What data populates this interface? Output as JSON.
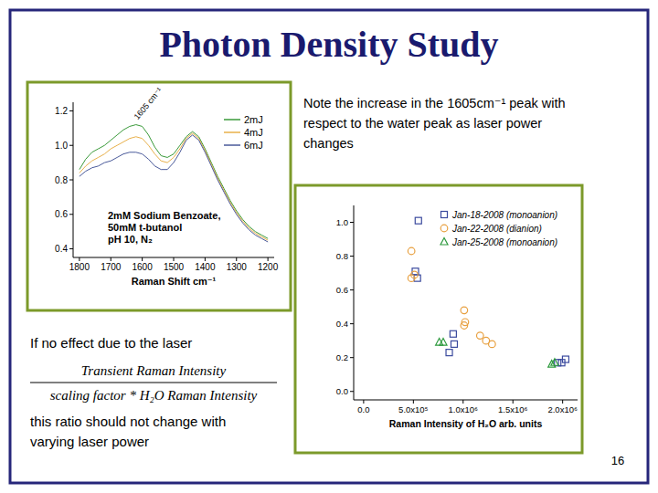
{
  "slide": {
    "title": "Photon Density Study",
    "note": [
      "Note the increase in the 1605cm⁻¹ peak with",
      "respect to the water peak  as laser power",
      "changes"
    ],
    "caption_top": "If no effect due to the laser",
    "formula_numerator": "Transient  Raman  Intensity",
    "formula_denominator": "scaling  factor * H₂O  Raman  Intensity",
    "caption_bottom": [
      "this ratio should not change with",
      "varying laser power"
    ],
    "page_number": "16"
  },
  "chart_data": [
    {
      "type": "line",
      "xlabel": "Raman Shift cm⁻¹",
      "annotations": [
        "1605 cm⁻¹",
        "2mM Sodium Benzoate,",
        "50mM t-butanol",
        "pH 10, N₂"
      ],
      "x": [
        1800,
        1780,
        1760,
        1740,
        1720,
        1700,
        1680,
        1660,
        1640,
        1620,
        1600,
        1580,
        1560,
        1540,
        1520,
        1500,
        1480,
        1460,
        1440,
        1420,
        1400,
        1380,
        1360,
        1340,
        1320,
        1300,
        1280,
        1260,
        1240,
        1220,
        1200
      ],
      "series": [
        {
          "name": "2mJ",
          "color": "#3a9a3a",
          "values": [
            0.86,
            0.92,
            0.96,
            0.98,
            1.0,
            1.03,
            1.06,
            1.09,
            1.11,
            1.12,
            1.11,
            1.06,
            0.99,
            0.94,
            0.93,
            0.95,
            1.0,
            1.05,
            1.08,
            1.05,
            0.98,
            0.9,
            0.82,
            0.75,
            0.68,
            0.62,
            0.57,
            0.53,
            0.5,
            0.48,
            0.46
          ]
        },
        {
          "name": "4mJ",
          "color": "#e8b04a",
          "values": [
            0.84,
            0.88,
            0.91,
            0.93,
            0.95,
            0.98,
            1.0,
            1.02,
            1.04,
            1.05,
            1.04,
            1.0,
            0.95,
            0.91,
            0.9,
            0.93,
            0.98,
            1.04,
            1.07,
            1.04,
            0.97,
            0.89,
            0.81,
            0.74,
            0.67,
            0.61,
            0.56,
            0.52,
            0.49,
            0.47,
            0.45
          ]
        },
        {
          "name": "6mJ",
          "color": "#4a5a9a",
          "values": [
            0.82,
            0.85,
            0.87,
            0.88,
            0.9,
            0.91,
            0.93,
            0.95,
            0.96,
            0.96,
            0.95,
            0.92,
            0.88,
            0.86,
            0.86,
            0.9,
            0.96,
            1.03,
            1.06,
            1.03,
            0.96,
            0.88,
            0.8,
            0.73,
            0.66,
            0.6,
            0.55,
            0.51,
            0.48,
            0.46,
            0.44
          ]
        }
      ],
      "xlim": [
        1820,
        1180
      ],
      "xticks": [
        1800,
        1700,
        1600,
        1500,
        1400,
        1300,
        1200
      ],
      "ylim": [
        0.35,
        1.25
      ],
      "yticks": [
        0.4,
        0.6,
        0.8,
        {
          "value": 1,
          "label": "1.0"
        },
        1.2
      ],
      "legend": "upper right",
      "grid": false
    },
    {
      "type": "scatter",
      "xlabel": "Raman Intensity of H₂O arb. units",
      "series": [
        {
          "name": "Jan-18-2008 (monoanion)",
          "color": "#3b4a9e",
          "marker": "square",
          "x": [
            550000,
            520000,
            540000,
            900000,
            910000,
            860000,
            2030000,
            1990000,
            1950000
          ],
          "values": [
            1.01,
            0.71,
            0.67,
            0.34,
            0.28,
            0.23,
            0.19,
            0.17,
            0.17
          ]
        },
        {
          "name": "Jan-22-2008 (dianion)",
          "color": "#e8a040",
          "marker": "circle",
          "x": [
            480000,
            510000,
            480000,
            1010000,
            1020000,
            1010000,
            1170000,
            1230000,
            1290000
          ],
          "values": [
            0.83,
            0.69,
            0.67,
            0.48,
            0.41,
            0.39,
            0.33,
            0.3,
            0.28
          ]
        },
        {
          "name": "Jan-25-2008 (monoanion)",
          "color": "#2e9a3e",
          "marker": "triangle",
          "x": [
            760000,
            800000,
            1890000,
            1920000
          ],
          "values": [
            0.29,
            0.29,
            0.16,
            0.17
          ]
        }
      ],
      "xlim": [
        -100000,
        2150000
      ],
      "xticks": [
        {
          "value": 0,
          "label": "0.0"
        },
        {
          "value": 500000,
          "label": "5.0x10⁵"
        },
        {
          "value": 1000000,
          "label": "1.0x10⁶"
        },
        {
          "value": 1500000,
          "label": "1.5x10⁶"
        },
        {
          "value": 2000000,
          "label": "2.0x10⁶"
        }
      ],
      "ylim": [
        -0.05,
        1.1
      ],
      "yticks": [
        {
          "value": 0,
          "label": "0.0"
        },
        0.2,
        0.4,
        0.6,
        0.8,
        {
          "value": 1,
          "label": "1.0"
        }
      ],
      "legend": "upper right",
      "grid": false
    }
  ]
}
